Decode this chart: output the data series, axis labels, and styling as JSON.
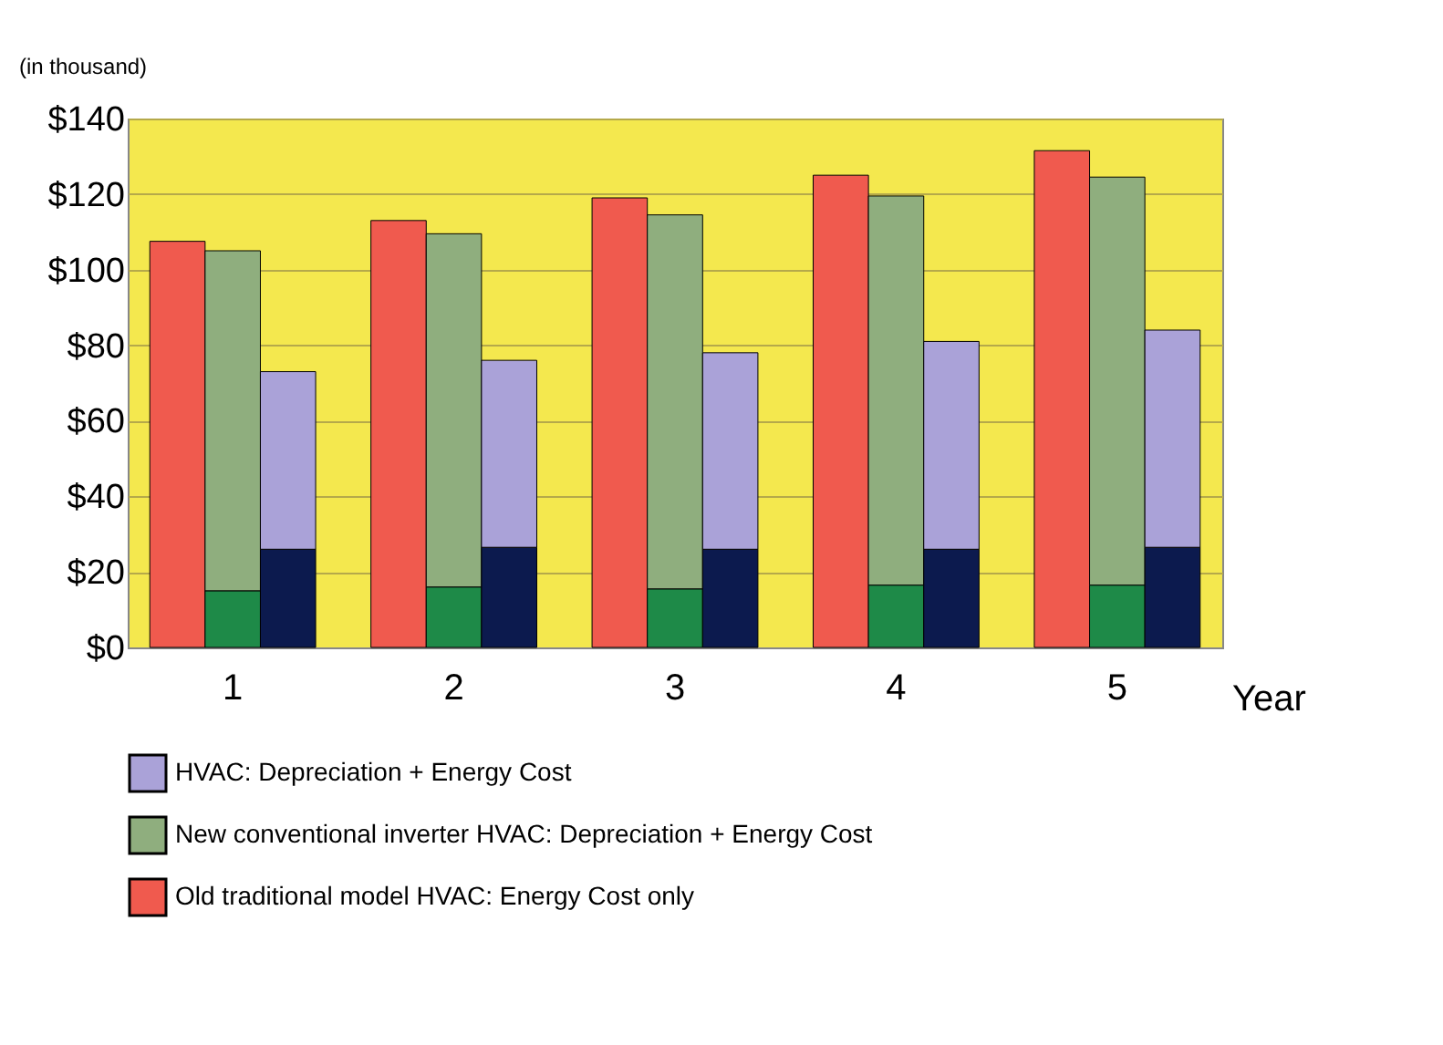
{
  "chart_data": {
    "type": "bar",
    "ylabel": "(in thousand)",
    "xlabel": "Year",
    "stacked": true,
    "categories": [
      null,
      "1",
      null,
      null,
      "2",
      null,
      null,
      "3",
      null,
      null,
      "4",
      null,
      null,
      "5",
      null
    ],
    "series": [
      {
        "name": "Old traditional model HVAC: Energy Cost only",
        "color": "#f05a4e",
        "values": [
          107.5,
          null,
          null,
          113,
          null,
          null,
          119,
          null,
          null,
          125,
          null,
          null,
          131.5,
          null,
          null
        ]
      },
      {
        "color": "#1e8a48",
        "values": [
          null,
          15,
          null,
          null,
          16,
          null,
          null,
          15.5,
          null,
          null,
          16.5,
          null,
          null,
          16.5,
          null
        ]
      },
      {
        "name": "New conventional inverter HVAC: Depreciation + Energy Cost",
        "color": "#8fae7e",
        "values": [
          null,
          90,
          null,
          null,
          93.5,
          null,
          null,
          99,
          null,
          null,
          103,
          null,
          null,
          108,
          null
        ]
      },
      {
        "color": "#0c1a4e",
        "values": [
          null,
          null,
          26,
          null,
          null,
          26.5,
          null,
          null,
          26,
          null,
          null,
          26,
          null,
          null,
          26.5
        ]
      },
      {
        "name": "HVAC: Depreciation + Energy Cost",
        "color": "#aaa2d8",
        "values": [
          null,
          null,
          47,
          null,
          null,
          49.5,
          null,
          null,
          52,
          null,
          null,
          55,
          null,
          null,
          57.5
        ]
      }
    ],
    "ylim": [
      0,
      140
    ],
    "yticks": [
      {
        "value": 0,
        "label": "$0"
      },
      {
        "value": 20,
        "label": "$20"
      },
      {
        "value": 40,
        "label": "$40"
      },
      {
        "value": 60,
        "label": "$60"
      },
      {
        "value": 80,
        "label": "$80"
      },
      {
        "value": 100,
        "label": "$100"
      },
      {
        "value": 120,
        "label": "$120"
      },
      {
        "value": 140,
        "label": "$140"
      }
    ],
    "grid": "y",
    "legend": "bottom"
  }
}
